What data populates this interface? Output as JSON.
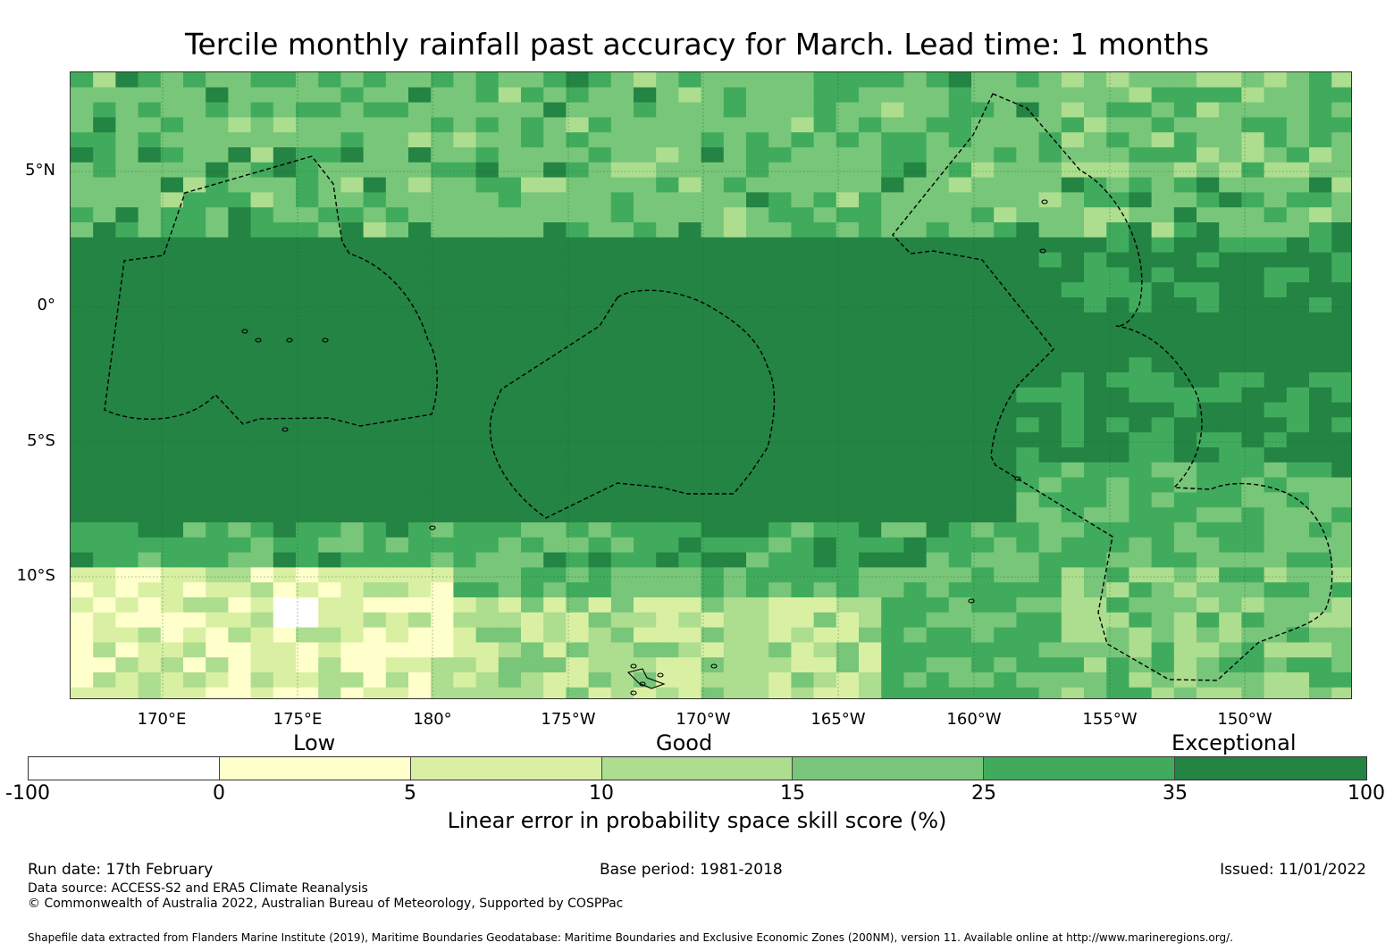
{
  "title": "Tercile monthly rainfall past accuracy for March. Lead time: 1 months",
  "map": {
    "lat_labels": [
      "5°N",
      "0°",
      "5°S",
      "10°S"
    ],
    "lon_labels": [
      "170°E",
      "175°E",
      "180°",
      "175°W",
      "170°W",
      "165°W",
      "160°W",
      "155°W",
      "150°W"
    ],
    "palette": [
      "#ffffff",
      "#ffffcc",
      "#d9f0a3",
      "#addd8e",
      "#78c679",
      "#41ab5d",
      "#238443"
    ],
    "legend_categories": {
      "low": "Low",
      "good": "Good",
      "exceptional": "Exceptional"
    }
  },
  "colorbar": {
    "ticks": [
      "-100",
      "0",
      "5",
      "10",
      "15",
      "25",
      "35",
      "100"
    ],
    "label": "Linear error in probability space skill score (%)"
  },
  "footer": {
    "run_date": "Run date: 17th February",
    "base_period": "Base period: 1981-2018",
    "issued": "Issued: 11/01/2022",
    "data_source": "Data source: ACCESS-S2 and ERA5 Climate Reanalysis",
    "copyright": "© Commonwealth of Australia 2022, Australian Bureau of Meteorology, Supported by COSPPac",
    "shapefile": "Shapefile data extracted from Flanders Marine Institute (2019), Maritime Boundaries Geodatabase: Maritime Boundaries and Exclusive Economic Zones (200NM), version 11. Available online at http://www.marineregions.org/."
  }
}
